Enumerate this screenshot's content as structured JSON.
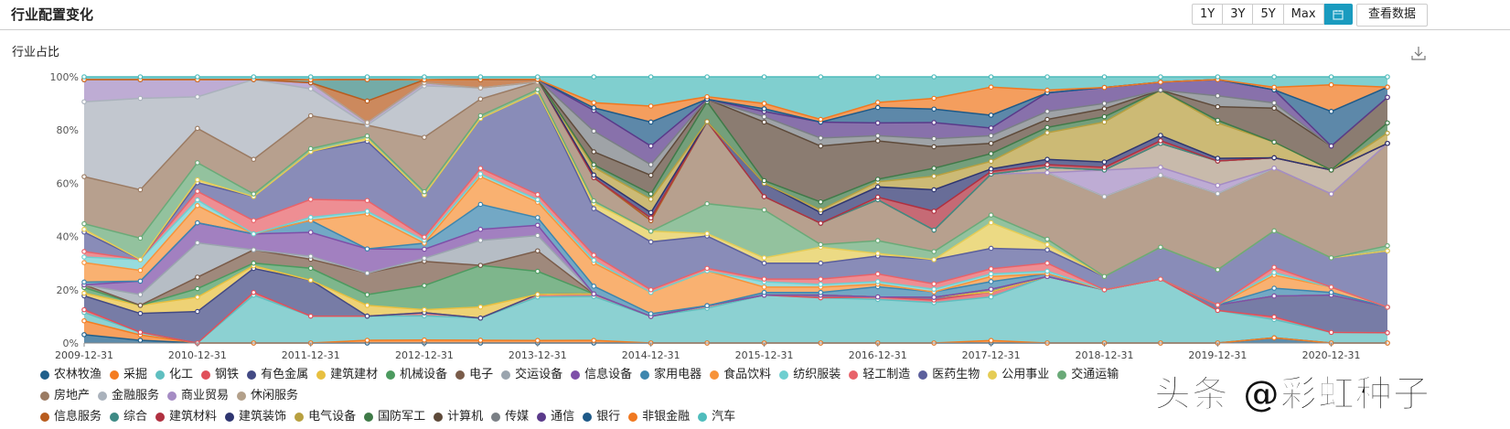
{
  "header": {
    "title": "行业配置变化",
    "range_buttons": [
      "1Y",
      "3Y",
      "5Y",
      "Max"
    ],
    "calendar_icon": "calendar-icon",
    "view_data_label": "查看数据",
    "accent_color": "#1a9bbf"
  },
  "subtitle": "行业占比",
  "download_icon": "download-icon",
  "watermark": "头条 @彩虹种子",
  "chart_data": {
    "type": "area",
    "stacked": true,
    "normalized_percent": true,
    "ylim": [
      0,
      100
    ],
    "y_ticks": [
      "0%",
      "20%",
      "40%",
      "60%",
      "80%",
      "100%"
    ],
    "x_tick_labels": [
      "2009-12-31",
      "2010-12-31",
      "2011-12-31",
      "2012-12-31",
      "2013-12-31",
      "2014-12-31",
      "2015-12-31",
      "2016-12-31",
      "2017-12-31",
      "2018-12-31",
      "2019-12-31",
      "2020-12-31"
    ],
    "x": [
      "2009-12-31",
      "2010-06-30",
      "2010-12-31",
      "2011-06-30",
      "2011-12-31",
      "2012-06-30",
      "2012-12-31",
      "2013-06-30",
      "2013-12-31",
      "2014-06-30",
      "2014-12-31",
      "2015-06-30",
      "2015-12-31",
      "2016-06-30",
      "2016-12-31",
      "2017-06-30",
      "2017-12-31",
      "2018-06-30",
      "2018-12-31",
      "2019-06-30",
      "2019-12-31",
      "2020-06-30",
      "2020-12-31",
      "2021-06-30"
    ],
    "legend_position": "bottom",
    "grid": false,
    "series": [
      {
        "name": "农林牧渔",
        "color": "#1f5f8b",
        "values": [
          3,
          1,
          0,
          0,
          0,
          0,
          0,
          0,
          0,
          0,
          0,
          0,
          0,
          0,
          0,
          0,
          0,
          0,
          0,
          0,
          0,
          2,
          0,
          0
        ]
      },
      {
        "name": "采掘",
        "color": "#f47c20",
        "values": [
          5,
          2,
          0,
          0,
          0,
          1,
          1,
          1,
          1,
          1,
          0,
          0,
          0,
          0,
          0,
          0,
          1,
          0,
          0,
          0,
          0,
          0,
          0,
          0
        ]
      },
      {
        "name": "化工",
        "color": "#5fbfc0",
        "values": [
          3,
          1,
          0,
          18,
          9,
          9,
          8,
          8,
          17,
          17,
          10,
          14,
          18,
          17,
          17,
          15,
          17,
          25,
          20,
          24,
          12,
          7,
          4,
          4
        ]
      },
      {
        "name": "钢铁",
        "color": "#e0505a",
        "values": [
          1,
          0,
          0,
          1,
          0,
          0,
          1,
          0,
          1,
          1,
          0,
          1,
          0,
          0,
          1,
          1,
          2,
          0,
          0,
          0,
          0,
          1,
          0,
          0
        ]
      },
      {
        "name": "有色金属",
        "color": "#434a84",
        "values": [
          5,
          7,
          11,
          9,
          12,
          0,
          0,
          0,
          0,
          0,
          0,
          0,
          0,
          1,
          0,
          1,
          0,
          0,
          0,
          0,
          2,
          8,
          14,
          10
        ]
      },
      {
        "name": "建筑建材",
        "color": "#e8c040",
        "values": [
          1,
          3,
          5,
          1,
          0,
          4,
          1,
          4,
          0,
          0,
          0,
          0,
          0,
          0,
          0,
          0,
          0,
          0,
          0,
          0,
          0,
          0,
          0,
          0
        ]
      },
      {
        "name": "机械设备",
        "color": "#4c9a5f",
        "values": [
          2,
          0,
          3,
          1,
          4,
          4,
          8,
          15,
          9,
          0,
          0,
          0,
          0,
          0,
          0,
          0,
          1,
          0,
          0,
          0,
          0,
          0,
          0,
          0
        ]
      },
      {
        "name": "电子",
        "color": "#7a5c4a",
        "values": [
          1,
          0,
          4,
          5,
          3,
          8,
          8,
          0,
          8,
          0,
          0,
          0,
          0,
          0,
          0,
          0,
          0,
          0,
          0,
          0,
          0,
          0,
          0,
          0
        ]
      },
      {
        "name": "交运设备",
        "color": "#9aa4ae",
        "values": [
          0,
          4,
          12,
          0,
          1,
          0,
          1,
          9,
          6,
          0,
          0,
          0,
          0,
          0,
          0,
          0,
          0,
          0,
          0,
          0,
          0,
          0,
          0,
          0
        ]
      },
      {
        "name": "信息设备",
        "color": "#7e4fa8",
        "values": [
          0,
          5,
          7,
          6,
          8,
          9,
          3,
          4,
          4,
          0,
          0,
          0,
          0,
          0,
          0,
          0,
          0,
          0,
          0,
          0,
          0,
          0,
          0,
          0
        ]
      },
      {
        "name": "家用电器",
        "color": "#3d86ae",
        "values": [
          1,
          0,
          0,
          0,
          4,
          0,
          2,
          9,
          3,
          3,
          1,
          0,
          1,
          1,
          4,
          2,
          3,
          1,
          0,
          0,
          0,
          3,
          1,
          0
        ]
      },
      {
        "name": "食品饮料",
        "color": "#f7933a",
        "values": [
          7,
          4,
          6,
          0,
          0,
          13,
          0,
          10,
          6,
          9,
          8,
          14,
          2,
          2,
          1,
          0,
          2,
          0,
          0,
          0,
          0,
          5,
          2,
          0
        ]
      },
      {
        "name": "纺织服装",
        "color": "#6fcfd0",
        "values": [
          2,
          4,
          2,
          0,
          1,
          1,
          1,
          1,
          1,
          1,
          0,
          0,
          2,
          1,
          1,
          1,
          1,
          1,
          0,
          0,
          0,
          1,
          0,
          0
        ]
      },
      {
        "name": "轻工制造",
        "color": "#e8636a",
        "values": [
          2,
          0,
          3,
          5,
          6,
          4,
          1,
          2,
          2,
          2,
          1,
          1,
          1,
          2,
          3,
          2,
          2,
          3,
          0,
          0,
          0,
          2,
          0,
          0
        ]
      },
      {
        "name": "医药生物",
        "color": "#5b5f9c",
        "values": [
          7,
          0,
          3,
          9,
          16,
          22,
          14,
          18,
          40,
          18,
          18,
          13,
          6,
          6,
          7,
          9,
          8,
          5,
          5,
          12,
          13,
          14,
          11,
          22
        ]
      },
      {
        "name": "公用事业",
        "color": "#e5cc55",
        "values": [
          1,
          0,
          1,
          0,
          0,
          1,
          0,
          0,
          0,
          2,
          4,
          1,
          2,
          6,
          1,
          0,
          10,
          2,
          0,
          0,
          0,
          0,
          0,
          0
        ]
      },
      {
        "name": "交通运输",
        "color": "#6aaa78",
        "values": [
          2,
          8,
          6,
          1,
          1,
          1,
          1,
          1,
          1,
          1,
          0,
          12,
          18,
          1,
          5,
          3,
          3,
          2,
          0,
          0,
          0,
          0,
          0,
          2
        ]
      },
      {
        "name": "房地产",
        "color": "#9b7b63",
        "values": [
          17,
          18,
          12,
          13,
          11,
          4,
          18,
          6,
          3,
          9,
          4,
          33,
          5,
          8,
          16,
          8,
          16,
          25,
          30,
          27,
          28,
          24,
          24,
          40
        ]
      },
      {
        "name": "金融服务",
        "color": "#aab2bc",
        "values": [
          27,
          34,
          11,
          30,
          9,
          0,
          17,
          4,
          0,
          0,
          0,
          0,
          0,
          0,
          0,
          0,
          0,
          0,
          0,
          0,
          0,
          0,
          0,
          0
        ]
      },
      {
        "name": "商业贸易",
        "color": "#a58cc4",
        "values": [
          8,
          7,
          6,
          0,
          2,
          1,
          1,
          0,
          0,
          0,
          0,
          0,
          0,
          0,
          0,
          0,
          0,
          0,
          10,
          3,
          3,
          0,
          0,
          0
        ]
      },
      {
        "name": "休闲服务",
        "color": "#b3a08a",
        "values": [
          0,
          0,
          0,
          0,
          0,
          0,
          0,
          0,
          0,
          0,
          0,
          0,
          0,
          0,
          0,
          0,
          0,
          2,
          0,
          9,
          9,
          4,
          9,
          0
        ]
      },
      {
        "name": "信息服务",
        "color": "#b85c1e",
        "values": [
          0,
          0,
          0,
          0,
          0,
          8,
          1,
          3,
          1,
          0,
          0,
          0,
          0,
          0,
          0,
          0,
          0,
          0,
          0,
          0,
          0,
          0,
          0,
          0
        ]
      },
      {
        "name": "综合",
        "color": "#3e8a85",
        "values": [
          0,
          0,
          0,
          0,
          1,
          8,
          0,
          0,
          0,
          0,
          1,
          0,
          0,
          0,
          0,
          0,
          0,
          0,
          0,
          0,
          0,
          0,
          0,
          0
        ]
      },
      {
        "name": "建筑材料",
        "color": "#b03040",
        "values": [
          0,
          0,
          0,
          0,
          0,
          0,
          0,
          0,
          0,
          0,
          0,
          0,
          0,
          0,
          1,
          7,
          1,
          1,
          1,
          1,
          0,
          0,
          0,
          0
        ]
      },
      {
        "name": "建筑装饰",
        "color": "#2e3570",
        "values": [
          0,
          0,
          0,
          0,
          0,
          0,
          0,
          0,
          0,
          1,
          2,
          0,
          5,
          4,
          4,
          8,
          1,
          2,
          2,
          2,
          1,
          0,
          0,
          0
        ]
      },
      {
        "name": "电气设备",
        "color": "#b8a040",
        "values": [
          0,
          0,
          0,
          0,
          0,
          0,
          0,
          0,
          0,
          3,
          5,
          0,
          0,
          1,
          2,
          5,
          3,
          10,
          15,
          17,
          13,
          6,
          0,
          4
        ]
      },
      {
        "name": "国防军工",
        "color": "#3f7a48",
        "values": [
          0,
          0,
          0,
          0,
          0,
          0,
          0,
          0,
          0,
          1,
          2,
          8,
          1,
          3,
          1,
          3,
          3,
          2,
          2,
          0,
          1,
          0,
          0,
          4
        ]
      },
      {
        "name": "计算机",
        "color": "#5e4a3a",
        "values": [
          0,
          0,
          0,
          0,
          0,
          0,
          0,
          0,
          0,
          5,
          7,
          1,
          22,
          21,
          15,
          8,
          4,
          3,
          3,
          0,
          5,
          13,
          9,
          10
        ]
      },
      {
        "name": "传媒",
        "color": "#7a7f85",
        "values": [
          0,
          0,
          0,
          0,
          0,
          0,
          0,
          0,
          0,
          8,
          4,
          0,
          2,
          3,
          2,
          3,
          3,
          3,
          2,
          0,
          4,
          2,
          0,
          0
        ]
      },
      {
        "name": "通信",
        "color": "#5a3a8a",
        "values": [
          0,
          0,
          0,
          0,
          0,
          0,
          0,
          0,
          0,
          8,
          7,
          0,
          2,
          6,
          5,
          6,
          3,
          7,
          6,
          3,
          6,
          5,
          0,
          0
        ]
      },
      {
        "name": "银行",
        "color": "#1e5a88",
        "values": [
          0,
          0,
          0,
          0,
          0,
          0,
          0,
          0,
          0,
          1,
          9,
          0,
          1,
          0,
          6,
          5,
          5,
          0,
          0,
          0,
          0,
          0,
          13,
          4
        ]
      },
      {
        "name": "非银金融",
        "color": "#f07820",
        "values": [
          0,
          0,
          0,
          0,
          0,
          0,
          0,
          0,
          0,
          2,
          6,
          1,
          2,
          1,
          2,
          4,
          11,
          1,
          0,
          0,
          0,
          1,
          10,
          0
        ]
      },
      {
        "name": "汽车",
        "color": "#4fbcbc",
        "values": [
          1,
          1,
          1,
          1,
          1,
          1,
          1,
          1,
          1,
          10,
          11,
          8,
          10,
          16,
          10,
          8,
          4,
          5,
          4,
          2,
          1,
          4,
          3,
          4
        ]
      }
    ]
  }
}
